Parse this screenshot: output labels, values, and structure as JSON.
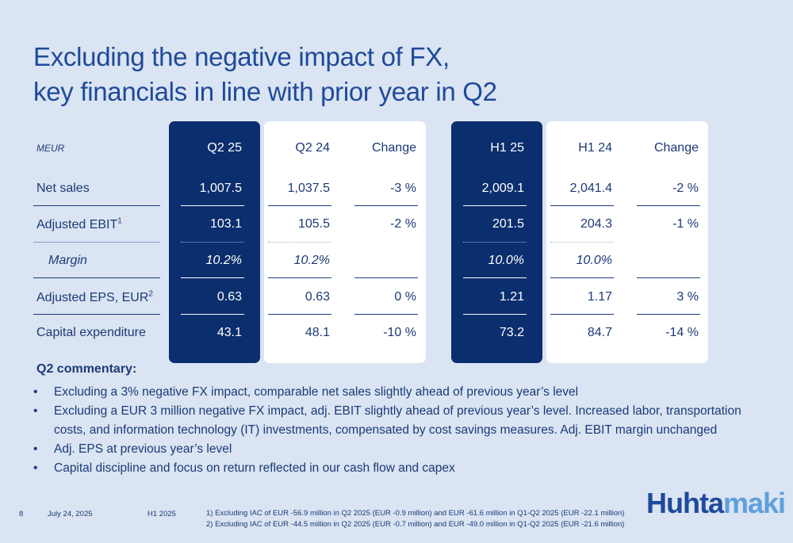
{
  "title": {
    "line1": "Excluding the negative impact of FX,",
    "line2": "key financials in line with prior year in Q2"
  },
  "table": {
    "unit_label": "MEUR",
    "headers": [
      "Q2 25",
      "Q2 24",
      "Change",
      "H1 25",
      "H1 24",
      "Change"
    ],
    "rows": [
      {
        "label": "Net sales",
        "sup": "",
        "values": [
          "1,007.5",
          "1,037.5",
          "-3 %",
          "2,009.1",
          "2,041.4",
          "-2 %"
        ]
      },
      {
        "label": "Adjusted EBIT",
        "sup": "1",
        "values": [
          "103.1",
          "105.5",
          "-2 %",
          "201.5",
          "204.3",
          "-1 %"
        ]
      },
      {
        "label": "Margin",
        "sup": "",
        "values": [
          "10.2%",
          "10.2%",
          "",
          "10.0%",
          "10.0%",
          ""
        ]
      },
      {
        "label": "Adjusted EPS, EUR",
        "sup": "2",
        "values": [
          "0.63",
          "0.63",
          "0 %",
          "1.21",
          "1.17",
          "3 %"
        ]
      },
      {
        "label": "Capital expenditure",
        "sup": "",
        "values": [
          "43.1",
          "48.1",
          "-10 %",
          "73.2",
          "84.7",
          "-14 %"
        ]
      }
    ]
  },
  "commentary": {
    "title": "Q2 commentary:",
    "bullet_symbol": "•",
    "bullets": [
      "Excluding a 3% negative FX impact, comparable net sales slightly ahead of previous year’s level",
      "Excluding a EUR 3 million negative FX impact, adj. EBIT slightly ahead of previous year’s level. Increased labor, transportation costs, and information technology (IT) investments, compensated by cost savings measures. Adj. EBIT margin unchanged",
      "Adj. EPS at previous year’s level",
      "Capital discipline and focus on return reflected in our cash flow and capex"
    ]
  },
  "footer": {
    "page": "8",
    "date": "July 24, 2025",
    "period": "H1 2025",
    "footnote1": "1) Excluding IAC of EUR -56.9 million in Q2 2025 (EUR -0.9 million) and EUR -61.6 million in Q1-Q2 2025 (EUR -22.1 million)",
    "footnote2": "2) Excluding IAC of EUR -44.5 million in Q2 2025 (EUR -0.7 million) and EUR -49.0 million in Q1-Q2 2025 (EUR -21.6 million)"
  },
  "logo": {
    "part1": "Huhta",
    "part2": "maki"
  },
  "colors": {
    "background": "#dae4f2",
    "dark_panel": "#0b2e6e",
    "text": "#1c3a78",
    "logo_light": "#5fa0dc"
  }
}
